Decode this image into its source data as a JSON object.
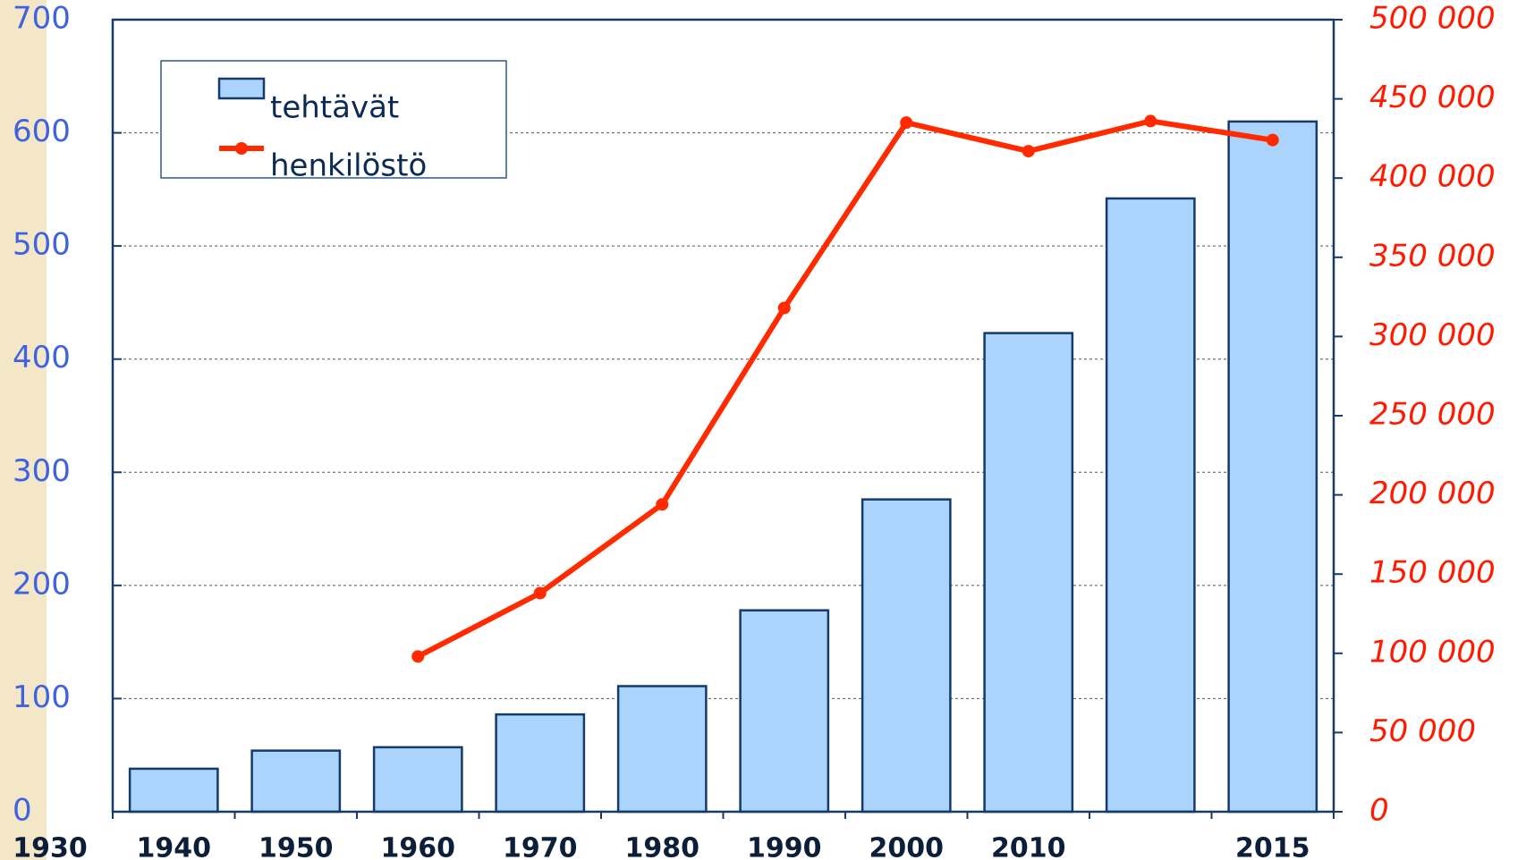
{
  "chart_data": {
    "type": "bar_line",
    "categories": [
      "1940",
      "1950",
      "1960",
      "1970",
      "1980",
      "1990",
      "2000",
      "2010",
      null,
      "2015"
    ],
    "x_origin_label": "1930",
    "series": [
      {
        "name": "tehtävät",
        "type": "bar",
        "color": "#aad4fb",
        "values": [
          38,
          54,
          57,
          86,
          111,
          178,
          276,
          423,
          542,
          610
        ]
      },
      {
        "name": "henkilöstö",
        "type": "line",
        "axis": "y2",
        "color": "#ff2a00",
        "values": [
          null,
          null,
          98000,
          138000,
          194000,
          318000,
          435000,
          417000,
          436000,
          424000
        ]
      }
    ],
    "ylim": [
      0,
      700
    ],
    "yticks": [
      0,
      100,
      200,
      300,
      400,
      500,
      600,
      700
    ],
    "y2lim": [
      0,
      500000
    ],
    "y2ticks": [
      0,
      {
        "value": 50000,
        "label": "50 000"
      },
      {
        "value": 100000,
        "label": "100 000"
      },
      {
        "value": 150000,
        "label": "150 000"
      },
      {
        "value": 200000,
        "label": "200 000"
      },
      {
        "value": 250000,
        "label": "250 000"
      },
      {
        "value": 300000,
        "label": "300 000"
      },
      {
        "value": 350000,
        "label": "350 000"
      },
      {
        "value": 400000,
        "label": "400 000"
      },
      {
        "value": 450000,
        "label": "450 000"
      },
      {
        "value": 500000,
        "label": "500 000"
      }
    ],
    "grid": true
  }
}
